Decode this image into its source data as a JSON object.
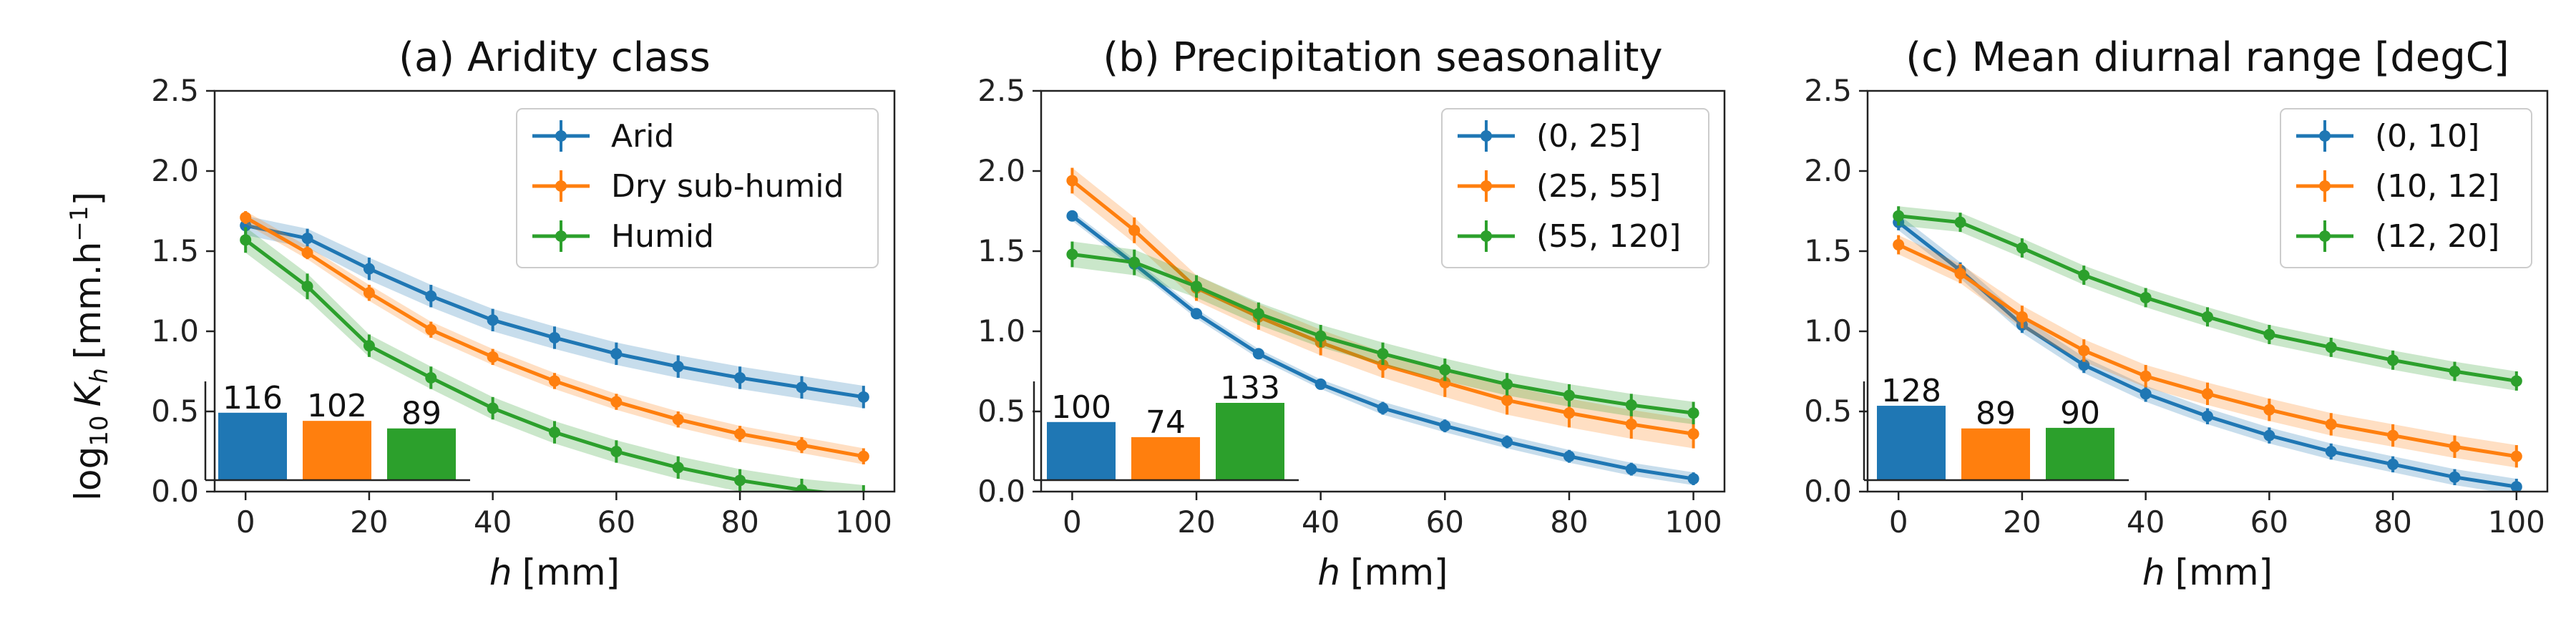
{
  "figure": {
    "ylabel_main": "log",
    "ylabel_sub": "10",
    "ylabel_var": "K",
    "ylabel_var_sub": "h",
    "ylabel_unit": "[mm.h",
    "ylabel_unit_sup": "−1",
    "ylabel_unit_end": "]",
    "xlabel_var": "h",
    "xlabel_unit": "[mm]"
  },
  "colors": {
    "blue": "#1f77b4",
    "orange": "#ff7f0e",
    "green": "#2ca02c"
  },
  "chart_data": [
    {
      "type": "line",
      "title": "(a) Aridity class",
      "xlabel": "h [mm]",
      "ylabel": "log10 Kh [mm.h−1]",
      "xlim": [
        -5,
        105
      ],
      "ylim": [
        0,
        2.5
      ],
      "xticks": [
        "0",
        "20",
        "40",
        "60",
        "80",
        "100"
      ],
      "yticks": [
        "0.0",
        "0.5",
        "1.0",
        "1.5",
        "2.0",
        "2.5"
      ],
      "x": [
        0,
        10,
        20,
        30,
        40,
        50,
        60,
        70,
        80,
        90,
        100
      ],
      "legend_position": "upper right",
      "series": [
        {
          "name": "Arid",
          "color": "#1f77b4",
          "values": [
            1.66,
            1.58,
            1.39,
            1.22,
            1.07,
            0.96,
            0.86,
            0.78,
            0.71,
            0.65,
            0.59
          ],
          "band": [
            0.06,
            0.06,
            0.07,
            0.07,
            0.07,
            0.07,
            0.07,
            0.07,
            0.07,
            0.07,
            0.07
          ],
          "count": 116
        },
        {
          "name": "Dry sub-humid",
          "color": "#ff7f0e",
          "values": [
            1.71,
            1.49,
            1.24,
            1.01,
            0.84,
            0.69,
            0.56,
            0.45,
            0.36,
            0.29,
            0.22
          ],
          "band": [
            0.04,
            0.04,
            0.05,
            0.05,
            0.05,
            0.05,
            0.05,
            0.05,
            0.05,
            0.05,
            0.05
          ],
          "count": 102
        },
        {
          "name": "Humid",
          "color": "#2ca02c",
          "values": [
            1.57,
            1.28,
            0.91,
            0.71,
            0.52,
            0.37,
            0.25,
            0.15,
            0.07,
            0.01,
            -0.03
          ],
          "band": [
            0.08,
            0.08,
            0.07,
            0.07,
            0.07,
            0.07,
            0.07,
            0.07,
            0.07,
            0.07,
            0.07
          ],
          "count": 89
        }
      ]
    },
    {
      "type": "line",
      "title": "(b) Precipitation seasonality",
      "xlabel": "h [mm]",
      "ylabel": "",
      "xlim": [
        -5,
        105
      ],
      "ylim": [
        0,
        2.5
      ],
      "xticks": [
        "0",
        "20",
        "40",
        "60",
        "80",
        "100"
      ],
      "yticks": [
        "0.0",
        "0.5",
        "1.0",
        "1.5",
        "2.0",
        "2.5"
      ],
      "x": [
        0,
        10,
        20,
        30,
        40,
        50,
        60,
        70,
        80,
        90,
        100
      ],
      "legend_position": "upper right",
      "series": [
        {
          "name": "(0, 25]",
          "color": "#1f77b4",
          "values": [
            1.72,
            1.42,
            1.11,
            0.86,
            0.67,
            0.52,
            0.41,
            0.31,
            0.22,
            0.14,
            0.08
          ],
          "band": [
            0.03,
            0.03,
            0.03,
            0.03,
            0.03,
            0.04,
            0.04,
            0.04,
            0.04,
            0.04,
            0.04
          ],
          "count": 100
        },
        {
          "name": "(25, 55]",
          "color": "#ff7f0e",
          "values": [
            1.94,
            1.63,
            1.27,
            1.09,
            0.93,
            0.79,
            0.68,
            0.57,
            0.49,
            0.42,
            0.36
          ],
          "band": [
            0.08,
            0.08,
            0.08,
            0.08,
            0.08,
            0.08,
            0.09,
            0.09,
            0.09,
            0.09,
            0.09
          ],
          "count": 74
        },
        {
          "name": "(55, 120]",
          "color": "#2ca02c",
          "values": [
            1.48,
            1.43,
            1.28,
            1.11,
            0.97,
            0.86,
            0.76,
            0.67,
            0.6,
            0.54,
            0.49
          ],
          "band": [
            0.08,
            0.08,
            0.07,
            0.07,
            0.07,
            0.07,
            0.07,
            0.07,
            0.07,
            0.07,
            0.07
          ],
          "count": 133
        }
      ]
    },
    {
      "type": "line",
      "title": "(c) Mean diurnal range [degC]",
      "xlabel": "h [mm]",
      "ylabel": "",
      "xlim": [
        -5,
        105
      ],
      "ylim": [
        0,
        2.5
      ],
      "xticks": [
        "0",
        "20",
        "40",
        "60",
        "80",
        "100"
      ],
      "yticks": [
        "0.0",
        "0.5",
        "1.0",
        "1.5",
        "2.0",
        "2.5"
      ],
      "x": [
        0,
        10,
        20,
        30,
        40,
        50,
        60,
        70,
        80,
        90,
        100
      ],
      "legend_position": "upper right",
      "series": [
        {
          "name": "(0, 10]",
          "color": "#1f77b4",
          "values": [
            1.68,
            1.38,
            1.04,
            0.79,
            0.61,
            0.47,
            0.35,
            0.25,
            0.17,
            0.09,
            0.03
          ],
          "band": [
            0.05,
            0.05,
            0.05,
            0.05,
            0.05,
            0.05,
            0.05,
            0.05,
            0.05,
            0.05,
            0.05
          ],
          "count": 128
        },
        {
          "name": "(10, 12]",
          "color": "#ff7f0e",
          "values": [
            1.54,
            1.36,
            1.09,
            0.88,
            0.72,
            0.61,
            0.51,
            0.42,
            0.35,
            0.28,
            0.22
          ],
          "band": [
            0.06,
            0.06,
            0.07,
            0.07,
            0.07,
            0.07,
            0.07,
            0.07,
            0.07,
            0.07,
            0.07
          ],
          "count": 89
        },
        {
          "name": "(12, 20]",
          "color": "#2ca02c",
          "values": [
            1.72,
            1.68,
            1.52,
            1.35,
            1.21,
            1.09,
            0.98,
            0.9,
            0.82,
            0.75,
            0.69
          ],
          "band": [
            0.06,
            0.06,
            0.06,
            0.06,
            0.06,
            0.06,
            0.06,
            0.06,
            0.06,
            0.06,
            0.06
          ],
          "count": 90
        }
      ]
    }
  ]
}
